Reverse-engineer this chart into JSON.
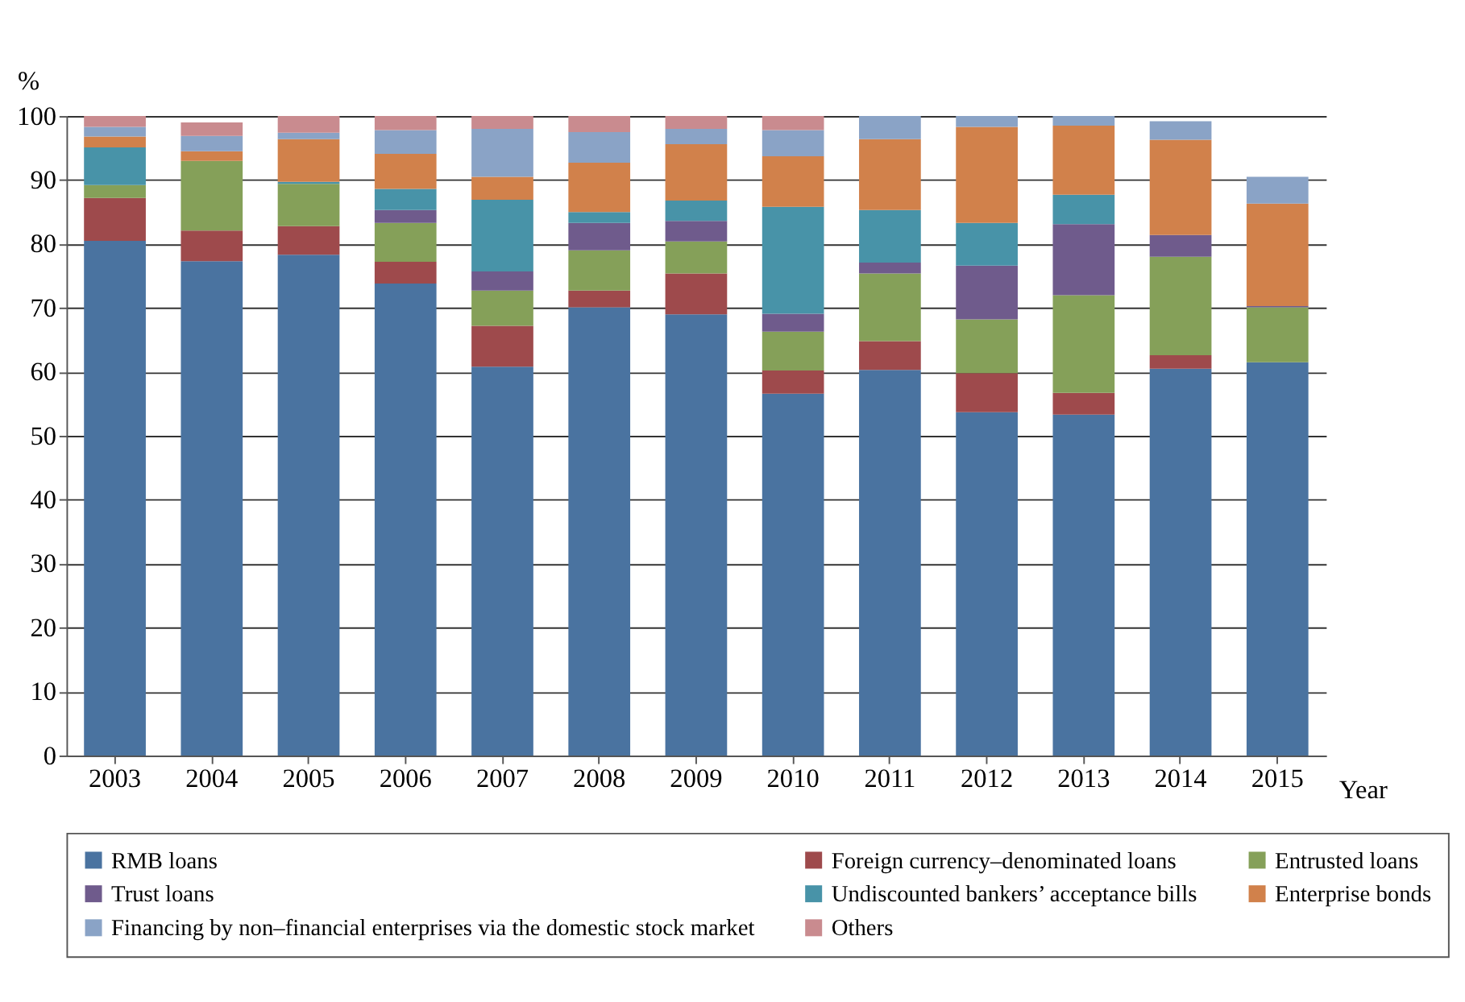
{
  "chart_data": {
    "type": "bar",
    "stacked": true,
    "ylabel": "%",
    "xlabel": "Year",
    "categories": [
      "2003",
      "2004",
      "2005",
      "2006",
      "2007",
      "2008",
      "2009",
      "2010",
      "2011",
      "2012",
      "2013",
      "2014",
      "2015"
    ],
    "series": [
      {
        "name": "RMB loans",
        "color": "#4a73a0",
        "values": [
          80.5,
          77.3,
          78.3,
          73.8,
          60.8,
          70.1,
          69.0,
          56.6,
          60.3,
          53.7,
          53.3,
          60.5,
          61.5
        ]
      },
      {
        "name": "Foreign currency–denominated loans",
        "color": "#9e4a4c",
        "values": [
          6.7,
          4.8,
          4.5,
          3.4,
          6.4,
          2.6,
          6.4,
          3.6,
          4.5,
          6.1,
          3.4,
          2.1,
          0
        ]
      },
      {
        "name": "Entrusted loans",
        "color": "#85a059",
        "values": [
          2.0,
          10.9,
          6.6,
          6.1,
          5.5,
          6.3,
          5.0,
          6.1,
          10.6,
          8.4,
          15.3,
          15.4,
          8.6
        ]
      },
      {
        "name": "Trust loans",
        "color": "#6f5b8c",
        "values": [
          0,
          0,
          0,
          2.0,
          3.0,
          4.3,
          3.2,
          2.8,
          1.7,
          8.4,
          11.1,
          3.4,
          0.2
        ]
      },
      {
        "name": "Undiscounted bankers’ acceptance bills",
        "color": "#4893a8",
        "values": [
          5.9,
          0,
          0.3,
          3.3,
          11.2,
          1.7,
          3.2,
          16.7,
          8.2,
          6.7,
          4.6,
          0,
          0
        ]
      },
      {
        "name": "Enterprise bonds",
        "color": "#d1814b",
        "values": [
          1.7,
          1.5,
          6.7,
          5.5,
          3.6,
          7.7,
          8.8,
          7.9,
          11.1,
          15.0,
          10.8,
          14.9,
          16.0
        ]
      },
      {
        "name": "Financing by non–financial enterprises via the domestic stock market",
        "color": "#8aa3c6",
        "values": [
          1.5,
          2.4,
          1.0,
          3.7,
          7.5,
          4.8,
          2.4,
          4.1,
          3.6,
          1.7,
          1.5,
          2.9,
          4.2
        ]
      },
      {
        "name": "Others",
        "color": "#c98b8f",
        "values": [
          1.7,
          2.1,
          2.6,
          2.2,
          2.0,
          2.5,
          2.0,
          2.2,
          0,
          0,
          0,
          0,
          0
        ]
      }
    ],
    "ylim": [
      0,
      100
    ],
    "yticks": [
      0,
      10,
      20,
      30,
      40,
      50,
      60,
      70,
      80,
      90,
      100
    ],
    "grid": "y",
    "legend": "bottom"
  }
}
